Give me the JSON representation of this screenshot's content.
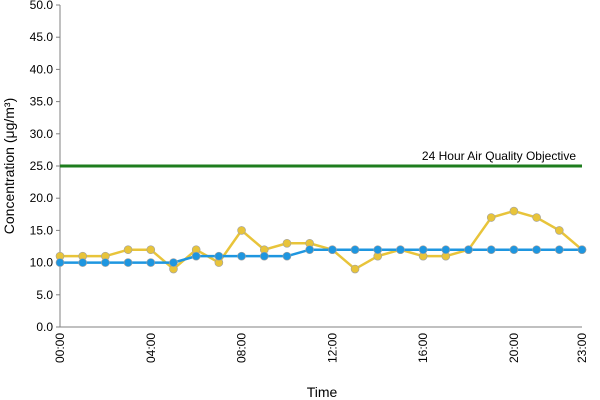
{
  "chart_data": {
    "type": "line",
    "xlabel": "Time",
    "ylabel": "Concentration (μg/m³)",
    "categories": [
      "00:00",
      null,
      null,
      null,
      "04:00",
      null,
      null,
      null,
      "08:00",
      null,
      null,
      null,
      "12:00",
      null,
      null,
      null,
      "16:00",
      null,
      null,
      null,
      "20:00",
      null,
      null,
      "23:00"
    ],
    "series": [
      {
        "color": "#e8c43a",
        "values": [
          11,
          11,
          11,
          12,
          12,
          9,
          12,
          10,
          15,
          12,
          13,
          13,
          12,
          9,
          11,
          12,
          11,
          11,
          12,
          17,
          18,
          17,
          15,
          12
        ]
      },
      {
        "color": "#1e96e0",
        "values": [
          10,
          10,
          10,
          10,
          10,
          10,
          11,
          11,
          11,
          11,
          11,
          12,
          12,
          12,
          12,
          12,
          12,
          12,
          12,
          12,
          12,
          12,
          12,
          12
        ]
      }
    ],
    "annotations": [
      {
        "text": "24 Hour Air Quality Objective",
        "value": 25,
        "color": "#1e7d1e"
      }
    ],
    "ylim": [
      0,
      50
    ],
    "yticks": [
      {
        "value": 0,
        "label": "0.0"
      },
      {
        "value": 5,
        "label": "5.0"
      },
      {
        "value": 10,
        "label": "10.0"
      },
      {
        "value": 15,
        "label": "15.0"
      },
      {
        "value": 20,
        "label": "20.0"
      },
      {
        "value": 25,
        "label": "25.0"
      },
      {
        "value": 30,
        "label": "30.0"
      },
      {
        "value": 35,
        "label": "35.0"
      },
      {
        "value": 40,
        "label": "40.0"
      },
      {
        "value": 45,
        "label": "45.0"
      },
      {
        "value": 50,
        "label": "50.0"
      }
    ],
    "grid": false
  }
}
